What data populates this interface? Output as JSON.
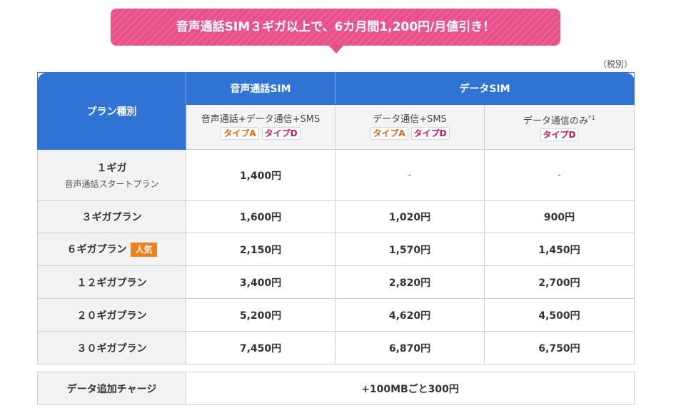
{
  "banner": {
    "text": "音声通話SIM３ギガ以上で、6カ月間1,200円/月値引き！"
  },
  "tax_note": "（税別）",
  "table": {
    "plan_type_header": "プラン種別",
    "voice_sim_header": "音声通話SIM",
    "data_sim_header": "データSIM",
    "sub_headers": [
      {
        "text": "音声通話+データ通信+SMS",
        "note": "",
        "tags": [
          "タイプA",
          "タイプD"
        ]
      },
      {
        "text": "データ通信+SMS",
        "note": "",
        "tags": [
          "タイプA",
          "タイプD"
        ]
      },
      {
        "text": "データ通信のみ",
        "note": "*1",
        "tags": [
          "タイプD"
        ]
      }
    ],
    "rows": [
      {
        "plan": "１ギガ",
        "plan_sub": "音声通話スタートプラン",
        "badge": "",
        "voice": "1,400円",
        "data_sms": "-",
        "data_only": "-"
      },
      {
        "plan": "３ギガプラン",
        "plan_sub": "",
        "badge": "",
        "voice": "1,600円",
        "data_sms": "1,020円",
        "data_only": "900円"
      },
      {
        "plan": "６ギガプラン",
        "plan_sub": "",
        "badge": "人気",
        "voice": "2,150円",
        "data_sms": "1,570円",
        "data_only": "1,450円"
      },
      {
        "plan": "１２ギガプラン",
        "plan_sub": "",
        "badge": "",
        "voice": "3,400円",
        "data_sms": "2,820円",
        "data_only": "2,700円"
      },
      {
        "plan": "２０ギガプラン",
        "plan_sub": "",
        "badge": "",
        "voice": "5,200円",
        "data_sms": "4,620円",
        "data_only": "4,500円"
      },
      {
        "plan": "３０ギガプラン",
        "plan_sub": "",
        "badge": "",
        "voice": "7,450円",
        "data_sms": "6,870円",
        "data_only": "6,750円"
      }
    ]
  },
  "charge": {
    "label": "データ追加チャージ",
    "value": "+100MBごと300円"
  },
  "colors": {
    "banner": "#e8508a",
    "header_blue": "#2f74d5",
    "popular_badge": "#f08020",
    "tag_a": "#e06a10",
    "tag_d": "#c2185b"
  }
}
